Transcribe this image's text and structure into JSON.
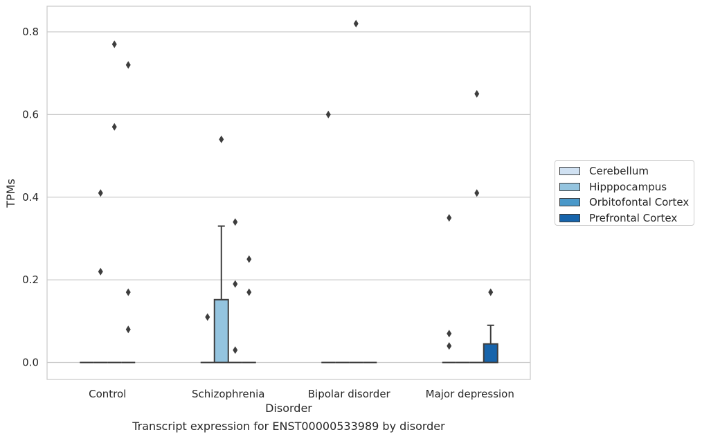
{
  "chart_data": {
    "type": "box",
    "title": "",
    "caption": "Transcript expression for ENST00000533989 by disorder",
    "xlabel": "Disorder",
    "ylabel": "TPMs",
    "ylim": [
      -0.04,
      0.86
    ],
    "yticks": [
      0.0,
      0.2,
      0.4,
      0.6,
      0.8
    ],
    "ytick_labels": [
      "0.0",
      "0.2",
      "0.4",
      "0.6",
      "0.8"
    ],
    "grid": "horizontal",
    "legend_position": "right",
    "categories": [
      "Control",
      "Schizophrenia",
      "Bipolar disorder",
      "Major depression"
    ],
    "series": [
      {
        "name": "Cerebellum",
        "color": "#d0e1f2",
        "boxes": [
          {
            "q1": 0,
            "median": 0,
            "q3": 0,
            "whisker_low": 0,
            "whisker_high": 0,
            "outliers": []
          },
          {
            "q1": 0,
            "median": 0,
            "q3": 0,
            "whisker_low": 0,
            "whisker_high": 0,
            "outliers": [
              0.11
            ]
          },
          {
            "q1": 0,
            "median": 0,
            "q3": 0,
            "whisker_low": 0,
            "whisker_high": 0,
            "outliers": [
              0.6
            ]
          },
          {
            "q1": 0,
            "median": 0,
            "q3": 0,
            "whisker_low": 0,
            "whisker_high": 0,
            "outliers": [
              0.35,
              0.07,
              0.04
            ]
          }
        ]
      },
      {
        "name": "Hipppocampus",
        "color": "#94c4df",
        "boxes": [
          {
            "q1": 0,
            "median": 0,
            "q3": 0,
            "whisker_low": 0,
            "whisker_high": 0,
            "outliers": [
              0.41,
              0.22
            ]
          },
          {
            "q1": 0,
            "median": 0,
            "q3": 0.152,
            "whisker_low": 0,
            "whisker_high": 0.33,
            "outliers": [
              0.54
            ]
          },
          {
            "q1": 0,
            "median": 0,
            "q3": 0,
            "whisker_low": 0,
            "whisker_high": 0,
            "outliers": []
          },
          {
            "q1": 0,
            "median": 0,
            "q3": 0,
            "whisker_low": 0,
            "whisker_high": 0,
            "outliers": []
          }
        ]
      },
      {
        "name": "Orbitofontal Cortex",
        "color": "#4a98c9",
        "boxes": [
          {
            "q1": 0,
            "median": 0,
            "q3": 0,
            "whisker_low": 0,
            "whisker_high": 0,
            "outliers": [
              0.77,
              0.57
            ]
          },
          {
            "q1": 0,
            "median": 0,
            "q3": 0,
            "whisker_low": 0,
            "whisker_high": 0,
            "outliers": [
              0.34,
              0.19,
              0.03
            ]
          },
          {
            "q1": 0,
            "median": 0,
            "q3": 0,
            "whisker_low": 0,
            "whisker_high": 0,
            "outliers": [
              0.82
            ]
          },
          {
            "q1": 0,
            "median": 0,
            "q3": 0,
            "whisker_low": 0,
            "whisker_high": 0,
            "outliers": [
              0.65,
              0.41
            ]
          }
        ]
      },
      {
        "name": "Prefrontal Cortex",
        "color": "#1764ab",
        "boxes": [
          {
            "q1": 0,
            "median": 0,
            "q3": 0,
            "whisker_low": 0,
            "whisker_high": 0,
            "outliers": [
              0.72,
              0.17,
              0.08
            ]
          },
          {
            "q1": 0,
            "median": 0,
            "q3": 0,
            "whisker_low": 0,
            "whisker_high": 0,
            "outliers": [
              0.25,
              0.17
            ]
          },
          {
            "q1": 0,
            "median": 0,
            "q3": 0,
            "whisker_low": 0,
            "whisker_high": 0,
            "outliers": []
          },
          {
            "q1": 0,
            "median": 0,
            "q3": 0.045,
            "whisker_low": 0,
            "whisker_high": 0.09,
            "outliers": [
              0.17
            ]
          }
        ]
      }
    ]
  }
}
